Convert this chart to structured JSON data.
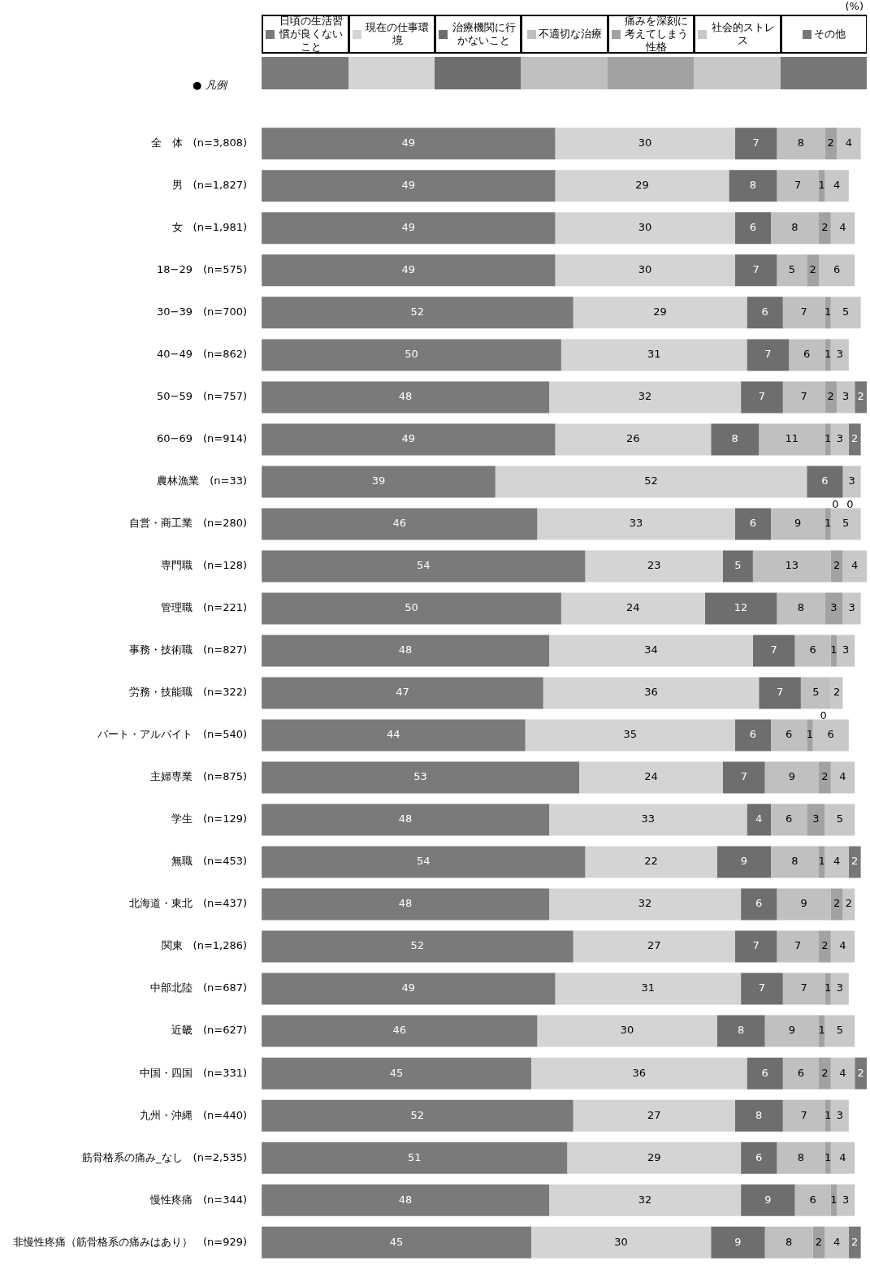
{
  "chart_data": {
    "type": "bar",
    "orientation": "horizontal",
    "stacked": true,
    "legend": "top",
    "tick_labels": "y",
    "grid": false,
    "annotations": [
      "(%)",
      "● 凡例"
    ],
    "categories": [
      "全　体　(n=3,808)",
      "男　(n=1,827)",
      "女　(n=1,981)",
      "18−29　(n=575)",
      "30−39　(n=700)",
      "40−49　(n=862)",
      "50−59　(n=757)",
      "60−69　(n=914)",
      "農林漁業　(n=33)",
      "自営・商工業　(n=280)",
      "専門職　(n=128)",
      "管理職　(n=221)",
      "事務・技術職　(n=827)",
      "労務・技能職　(n=322)",
      "パート・アルバイト　(n=540)",
      "主婦専業　(n=875)",
      "学生　(n=129)",
      "無職　(n=453)",
      "北海道・東北　(n=437)",
      "関東　(n=1,286)",
      "中部北陸　(n=687)",
      "近畿　(n=627)",
      "中国・四国　(n=331)",
      "九州・沖縄　(n=440)",
      "筋骨格系の痛み_なし　(n=2,535)",
      "慢性疼痛　(n=344)",
      "非慢性疼痛（筋骨格系の痛みはあり）　(n=929)"
    ],
    "series": [
      {
        "name": "日頃の生活習慣が良くないこと",
        "color": "#7a7a7a",
        "values": [
          49,
          49,
          49,
          49,
          52,
          50,
          48,
          49,
          39,
          46,
          54,
          50,
          48,
          47,
          44,
          53,
          48,
          54,
          48,
          52,
          49,
          46,
          45,
          52,
          51,
          48,
          45
        ]
      },
      {
        "name": "現在の仕事環境",
        "color": "#d4d4d4",
        "values": [
          30,
          29,
          30,
          30,
          29,
          31,
          32,
          26,
          52,
          33,
          23,
          24,
          34,
          36,
          35,
          24,
          33,
          22,
          32,
          27,
          31,
          30,
          36,
          27,
          29,
          32,
          30
        ]
      },
      {
        "name": "治療機関に行かないこと",
        "color": "#6e6e6e",
        "values": [
          7,
          8,
          6,
          7,
          6,
          7,
          7,
          8,
          6,
          6,
          5,
          12,
          7,
          7,
          6,
          7,
          4,
          9,
          6,
          7,
          7,
          8,
          6,
          8,
          6,
          9,
          9
        ]
      },
      {
        "name": "不適切な治療",
        "color": "#c0c0c0",
        "values": [
          8,
          7,
          8,
          5,
          7,
          6,
          7,
          11,
          0,
          9,
          13,
          8,
          6,
          5,
          6,
          9,
          6,
          8,
          9,
          7,
          7,
          9,
          6,
          7,
          8,
          6,
          8
        ]
      },
      {
        "name": "痛みを深刻に考えてしまう性格",
        "color": "#a2a2a2",
        "values": [
          2,
          1,
          2,
          2,
          1,
          1,
          2,
          1,
          0,
          1,
          2,
          3,
          1,
          0,
          1,
          2,
          3,
          1,
          2,
          2,
          1,
          1,
          2,
          1,
          1,
          1,
          2
        ]
      },
      {
        "name": "社会的ストレス",
        "color": "#c8c8c8",
        "values": [
          4,
          4,
          4,
          6,
          5,
          3,
          3,
          3,
          3,
          5,
          4,
          3,
          3,
          2,
          6,
          4,
          5,
          4,
          2,
          4,
          3,
          5,
          4,
          3,
          4,
          3,
          4
        ]
      },
      {
        "name": "その他",
        "color": "#777777",
        "values": [
          null,
          null,
          null,
          null,
          null,
          null,
          2,
          2,
          null,
          null,
          null,
          null,
          null,
          null,
          null,
          null,
          null,
          2,
          null,
          null,
          null,
          null,
          2,
          null,
          null,
          null,
          2
        ]
      }
    ],
    "data_labels": true
  }
}
